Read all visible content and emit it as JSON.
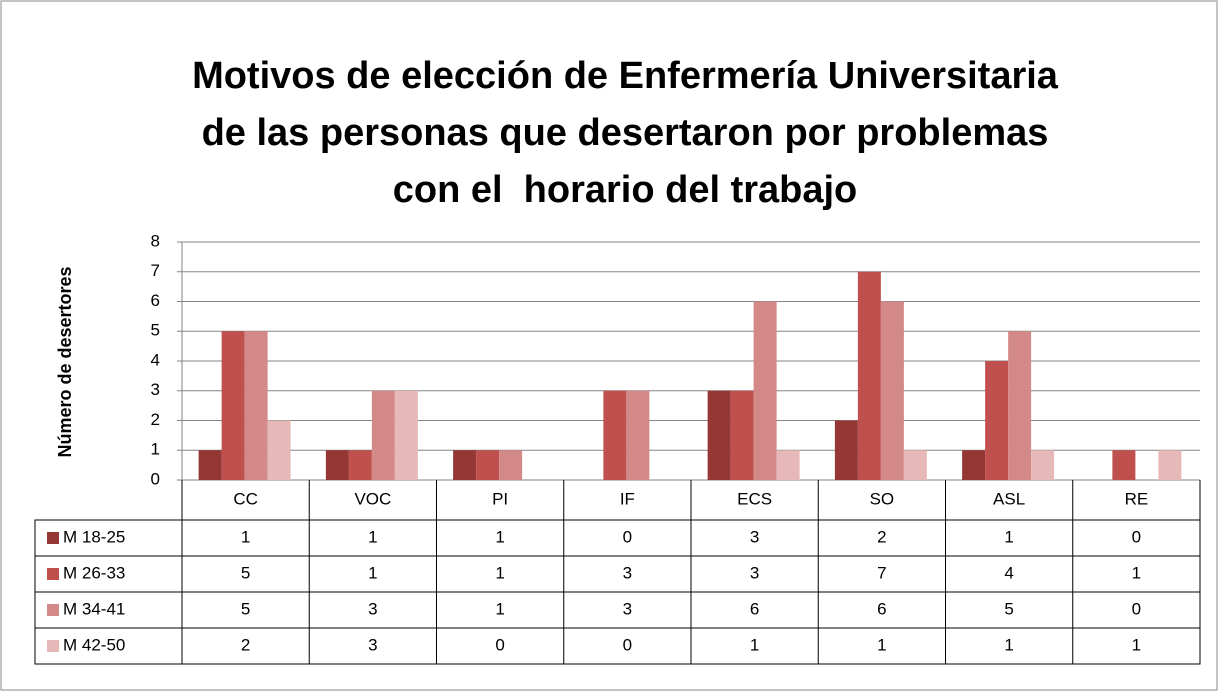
{
  "chart_data": {
    "type": "bar",
    "title": [
      "Motivos de elección de Enfermería Universitaria",
      "de las personas que desertaron por problemas",
      "con el  horario del trabajo"
    ],
    "y_label": "Número de desertores",
    "categories": [
      "CC",
      "VOC",
      "PI",
      "IF",
      "ECS",
      "SO",
      "ASL",
      "RE"
    ],
    "series": [
      {
        "name": "M 18-25",
        "color": "#953735",
        "values": [
          1,
          1,
          1,
          0,
          3,
          2,
          1,
          0
        ]
      },
      {
        "name": "M 26-33",
        "color": "#c0504d",
        "values": [
          5,
          1,
          1,
          3,
          3,
          7,
          4,
          1
        ]
      },
      {
        "name": "M 34-41",
        "color": "#d38987",
        "values": [
          5,
          3,
          1,
          3,
          6,
          6,
          5,
          0
        ]
      },
      {
        "name": "M 42-50",
        "color": "#e6b9b8",
        "values": [
          2,
          3,
          0,
          0,
          1,
          1,
          1,
          1
        ]
      }
    ],
    "ylim": [
      0,
      8
    ],
    "yticks": [
      0,
      1,
      2,
      3,
      4,
      5,
      6,
      7,
      8
    ],
    "grid": true,
    "legend": "data-table"
  }
}
